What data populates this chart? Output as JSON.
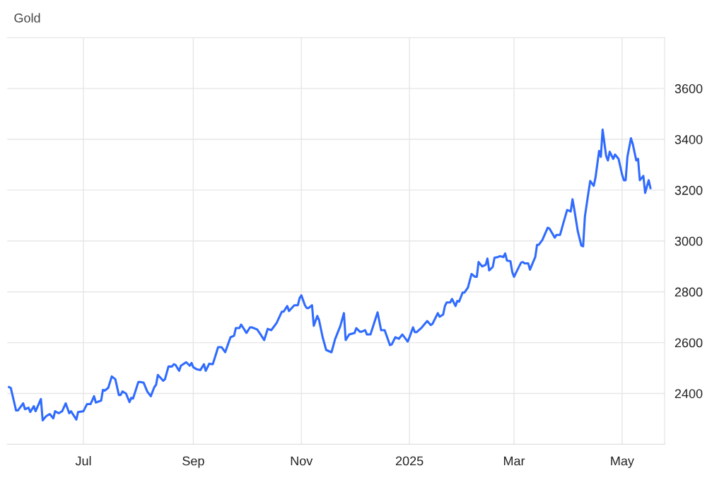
{
  "chart_data": {
    "type": "line",
    "title": "Gold",
    "x": [
      "2024-05-20",
      "2024-05-21",
      "2024-05-24",
      "2024-05-25",
      "2024-05-28",
      "2024-05-29",
      "2024-05-31",
      "2024-06-01",
      "2024-06-03",
      "2024-06-04",
      "2024-06-07",
      "2024-06-08",
      "2024-06-10",
      "2024-06-12",
      "2024-06-14",
      "2024-06-15",
      "2024-06-17",
      "2024-06-19",
      "2024-06-21",
      "2024-06-23",
      "2024-06-24",
      "2024-06-27",
      "2024-06-28",
      "2024-07-01",
      "2024-07-03",
      "2024-07-05",
      "2024-07-07",
      "2024-07-08",
      "2024-07-11",
      "2024-07-12",
      "2024-07-13",
      "2024-07-15",
      "2024-07-17",
      "2024-07-19",
      "2024-07-21",
      "2024-07-22",
      "2024-07-23",
      "2024-07-25",
      "2024-07-27",
      "2024-07-28",
      "2024-07-29",
      "2024-08-01",
      "2024-08-02",
      "2024-08-04",
      "2024-08-06",
      "2024-08-08",
      "2024-08-10",
      "2024-08-11",
      "2024-08-12",
      "2024-08-15",
      "2024-08-16",
      "2024-08-18",
      "2024-08-20",
      "2024-08-21",
      "2024-08-22",
      "2024-08-24",
      "2024-08-25",
      "2024-08-28",
      "2024-08-30",
      "2024-08-31",
      "2024-09-01",
      "2024-09-03",
      "2024-09-05",
      "2024-09-07",
      "2024-09-08",
      "2024-09-10",
      "2024-09-12",
      "2024-09-14",
      "2024-09-15",
      "2024-09-17",
      "2024-09-19",
      "2024-09-22",
      "2024-09-24",
      "2024-09-25",
      "2024-09-27",
      "2024-09-28",
      "2024-10-01",
      "2024-10-03",
      "2024-10-04",
      "2024-10-07",
      "2024-10-09",
      "2024-10-11",
      "2024-10-13",
      "2024-10-15",
      "2024-10-18",
      "2024-10-21",
      "2024-10-22",
      "2024-10-24",
      "2024-10-25",
      "2024-10-28",
      "2024-10-30",
      "2024-10-31",
      "2024-11-01",
      "2024-11-03",
      "2024-11-04",
      "2024-11-05",
      "2024-11-07",
      "2024-11-08",
      "2024-11-10",
      "2024-11-11",
      "2024-11-13",
      "2024-11-15",
      "2024-11-18",
      "2024-11-20",
      "2024-11-23",
      "2024-11-25",
      "2024-11-26",
      "2024-11-28",
      "2024-12-01",
      "2024-12-02",
      "2024-12-04",
      "2024-12-05",
      "2024-12-07",
      "2024-12-08",
      "2024-12-10",
      "2024-12-14",
      "2024-12-16",
      "2024-12-18",
      "2024-12-21",
      "2024-12-22",
      "2024-12-24",
      "2024-12-26",
      "2024-12-28",
      "2024-12-31",
      "2025-01-01",
      "2025-01-03",
      "2025-01-04",
      "2025-01-05",
      "2025-01-08",
      "2025-01-11",
      "2025-01-13",
      "2025-01-14",
      "2025-01-17",
      "2025-01-18",
      "2025-01-20",
      "2025-01-21",
      "2025-01-22",
      "2025-01-24",
      "2025-01-25",
      "2025-01-27",
      "2025-01-28",
      "2025-01-29",
      "2025-01-31",
      "2025-02-01",
      "2025-02-03",
      "2025-02-05",
      "2025-02-07",
      "2025-02-08",
      "2025-02-09",
      "2025-02-11",
      "2025-02-13",
      "2025-02-14",
      "2025-02-15",
      "2025-02-17",
      "2025-02-18",
      "2025-02-20",
      "2025-02-21",
      "2025-02-23",
      "2025-02-24",
      "2025-02-25",
      "2025-02-27",
      "2025-02-28",
      "2025-03-01",
      "2025-03-03",
      "2025-03-05",
      "2025-03-06",
      "2025-03-07",
      "2025-03-09",
      "2025-03-10",
      "2025-03-13",
      "2025-03-14",
      "2025-03-15",
      "2025-03-17",
      "2025-03-20",
      "2025-03-21",
      "2025-03-24",
      "2025-03-25",
      "2025-03-27",
      "2025-03-29",
      "2025-03-31",
      "2025-04-02",
      "2025-04-03",
      "2025-04-04",
      "2025-04-06",
      "2025-04-08",
      "2025-04-09",
      "2025-04-10",
      "2025-04-12",
      "2025-04-13",
      "2025-04-15",
      "2025-04-16",
      "2025-04-18",
      "2025-04-19",
      "2025-04-20",
      "2025-04-22",
      "2025-04-23",
      "2025-04-24",
      "2025-04-26",
      "2025-04-27",
      "2025-04-29",
      "2025-05-01",
      "2025-05-02",
      "2025-05-03",
      "2025-05-04",
      "2025-05-06",
      "2025-05-07",
      "2025-05-09",
      "2025-05-10",
      "2025-05-11",
      "2025-05-13",
      "2025-05-14",
      "2025-05-16",
      "2025-05-17"
    ],
    "series": [
      {
        "color": "#2f6bff",
        "values": [
          2425,
          2422,
          2333,
          2333,
          2361,
          2338,
          2344,
          2327,
          2350,
          2330,
          2378,
          2294,
          2311,
          2319,
          2302,
          2330,
          2322,
          2330,
          2361,
          2322,
          2330,
          2297,
          2327,
          2330,
          2358,
          2358,
          2389,
          2364,
          2372,
          2414,
          2411,
          2422,
          2467,
          2456,
          2394,
          2394,
          2408,
          2400,
          2366,
          2383,
          2380,
          2445,
          2445,
          2442,
          2408,
          2389,
          2425,
          2434,
          2473,
          2450,
          2456,
          2506,
          2506,
          2515,
          2512,
          2489,
          2509,
          2523,
          2509,
          2520,
          2503,
          2495,
          2492,
          2515,
          2489,
          2517,
          2515,
          2559,
          2582,
          2582,
          2562,
          2621,
          2627,
          2657,
          2657,
          2671,
          2638,
          2660,
          2660,
          2652,
          2632,
          2610,
          2654,
          2649,
          2677,
          2722,
          2722,
          2744,
          2724,
          2747,
          2747,
          2775,
          2786,
          2747,
          2736,
          2736,
          2747,
          2666,
          2705,
          2688,
          2621,
          2571,
          2562,
          2613,
          2666,
          2716,
          2610,
          2632,
          2638,
          2657,
          2643,
          2643,
          2649,
          2632,
          2632,
          2719,
          2649,
          2649,
          2590,
          2593,
          2621,
          2615,
          2632,
          2604,
          2621,
          2660,
          2641,
          2641,
          2660,
          2685,
          2669,
          2674,
          2716,
          2702,
          2710,
          2744,
          2758,
          2758,
          2772,
          2744,
          2764,
          2761,
          2797,
          2797,
          2817,
          2870,
          2859,
          2859,
          2917,
          2900,
          2906,
          2931,
          2884,
          2898,
          2934,
          2937,
          2940,
          2937,
          2951,
          2923,
          2920,
          2878,
          2859,
          2887,
          2915,
          2917,
          2912,
          2912,
          2887,
          2937,
          2985,
          2985,
          3004,
          3052,
          3049,
          3013,
          3024,
          3024,
          3074,
          3122,
          3116,
          3164,
          3125,
          3038,
          2982,
          2979,
          3096,
          3191,
          3236,
          3217,
          3250,
          3354,
          3331,
          3438,
          3334,
          3317,
          3351,
          3323,
          3340,
          3323,
          3261,
          3239,
          3239,
          3331,
          3404,
          3382,
          3317,
          3323,
          3239,
          3256,
          3189,
          3239,
          3208
        ]
      }
    ],
    "xlim": [
      "2024-05-19",
      "2025-05-25"
    ],
    "xticks": [
      {
        "value": "2024-07-01",
        "label": "Jul"
      },
      {
        "value": "2024-09-01",
        "label": "Sep"
      },
      {
        "value": "2024-11-01",
        "label": "Nov"
      },
      {
        "value": "2025-01-01",
        "label": "2025"
      },
      {
        "value": "2025-03-01",
        "label": "Mar"
      },
      {
        "value": "2025-05-01",
        "label": "May"
      }
    ],
    "ylim": [
      2200,
      3800
    ],
    "yticks": [
      2400,
      2600,
      2800,
      3000,
      3200,
      3400,
      3600
    ],
    "grid": true,
    "line_style": "solid",
    "marker": "none"
  }
}
